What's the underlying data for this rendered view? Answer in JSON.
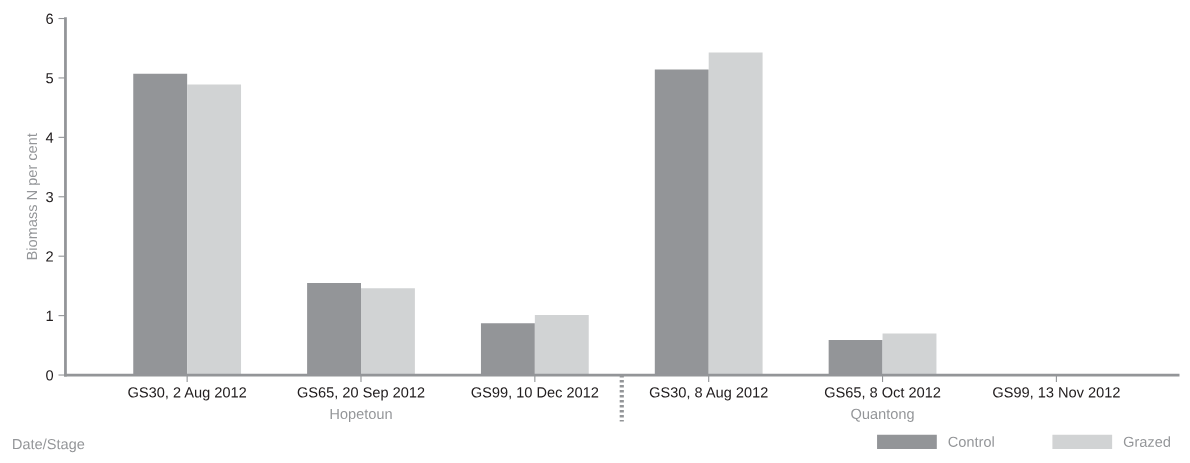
{
  "chart_data": {
    "type": "bar",
    "xlabel": "Date/Stage",
    "ylabel": "Biomass N per cent",
    "categories": [
      "GS30, 2 Aug 2012",
      "GS65, 20 Sep 2012",
      "GS99, 10 Dec 2012",
      "GS30, 8 Aug 2012",
      "GS65, 8 Oct 2012",
      "GS99, 13 Nov 2012"
    ],
    "series": [
      {
        "name": "Control",
        "color": "#939598",
        "values": [
          5.07,
          1.55,
          0.87,
          5.14,
          0.59,
          null
        ]
      },
      {
        "name": "Grazed",
        "color": "#d1d3d4",
        "values": [
          4.89,
          1.46,
          1.01,
          5.43,
          0.7,
          null
        ]
      }
    ],
    "annotations": [
      "Hopetoun",
      "Quantong"
    ],
    "ylim": [
      0,
      6
    ],
    "yticks": [
      0,
      1,
      2,
      3,
      4,
      5,
      6
    ],
    "grid": false,
    "legend": "bottom right"
  }
}
